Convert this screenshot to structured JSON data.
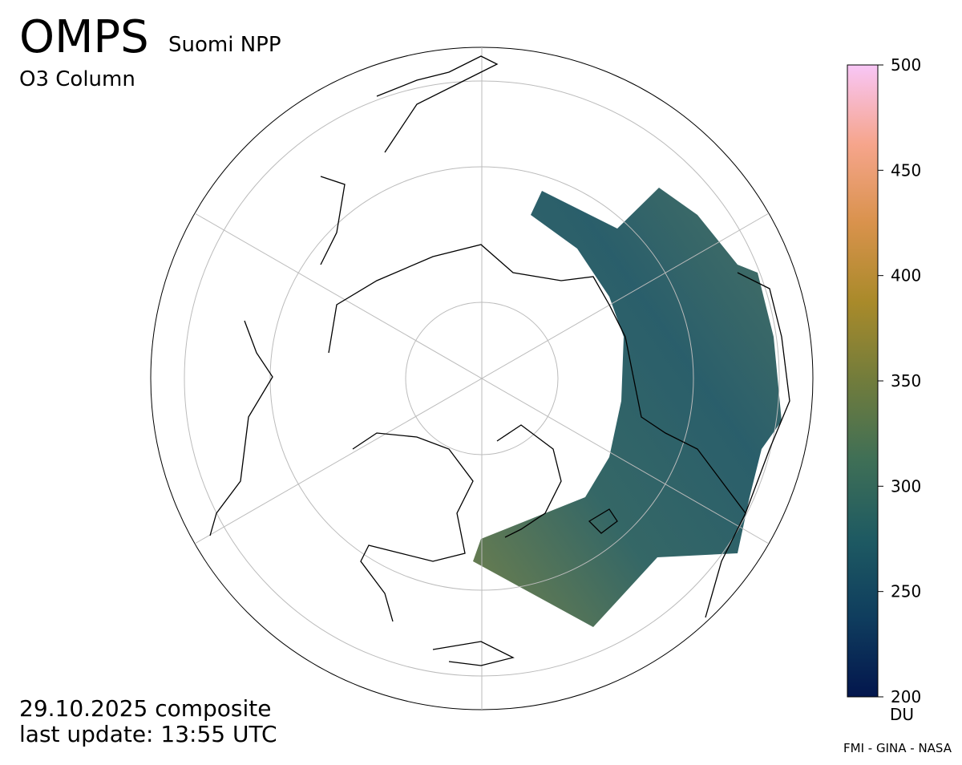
{
  "header": {
    "title": "OMPS",
    "subtitle": "Suomi NPP",
    "product": "O3 Column"
  },
  "footer": {
    "date": "29.10.2025 composite",
    "update": "last update: 13:55 UTC",
    "credit": "FMI - GINA - NASA"
  },
  "colorbar": {
    "lim": [
      200,
      500
    ],
    "ticks": [
      200,
      250,
      300,
      350,
      400,
      450,
      500
    ],
    "unit": "DU",
    "colormap": [
      "#03164d",
      "#0f3d5e",
      "#1e5a62",
      "#3f6f56",
      "#717c3c",
      "#a98a2a",
      "#d9924c",
      "#f6a58c",
      "#f8c6f6"
    ]
  }
}
